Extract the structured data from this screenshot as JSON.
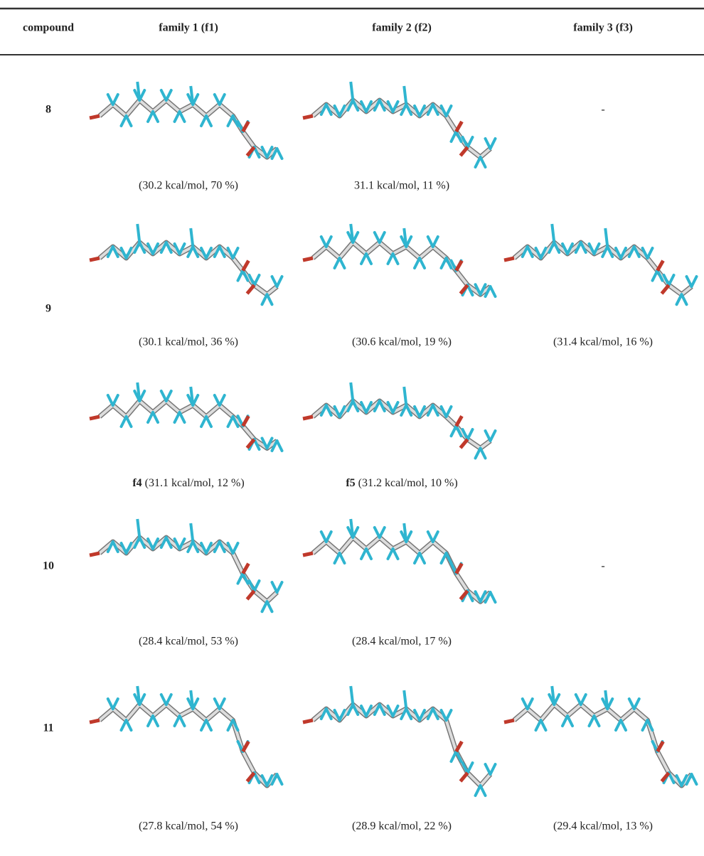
{
  "table": {
    "columns": [
      "compound",
      "family 1 (f1)",
      "family 2 (f2)",
      "family 3 (f3)"
    ],
    "rows": [
      {
        "compound": "8",
        "cells": [
          {
            "caption": "(30.2 kcal/mol, 70 %)"
          },
          {
            "caption": "31.1 kcal/mol, 11 %)"
          },
          {
            "text": "-"
          }
        ]
      },
      {
        "compound": "9",
        "cells": [
          {
            "caption": "(30.1 kcal/mol, 36 %)"
          },
          {
            "caption": "(30.6 kcal/mol, 19 %)"
          },
          {
            "caption": "(31.4 kcal/mol, 16 %)"
          }
        ]
      },
      {
        "cells": [
          {
            "label": "f4",
            "caption": "(31.1 kcal/mol, 12 %)"
          },
          {
            "label": "f5",
            "caption": "(31.2 kcal/mol, 10 %)"
          }
        ]
      },
      {
        "compound": "10",
        "cells": [
          {
            "caption": "(28.4 kcal/mol, 53 %)"
          },
          {
            "caption": "(28.4 kcal/mol, 17 %)"
          },
          {
            "text": "-"
          }
        ]
      },
      {
        "compound": "11",
        "cells": [
          {
            "caption": "(27.8 kcal/mol, 54 %)"
          },
          {
            "caption": "(28.9 kcal/mol, 22 %)"
          },
          {
            "caption": "(29.4 kcal/mol, 13 %)"
          }
        ]
      }
    ]
  }
}
